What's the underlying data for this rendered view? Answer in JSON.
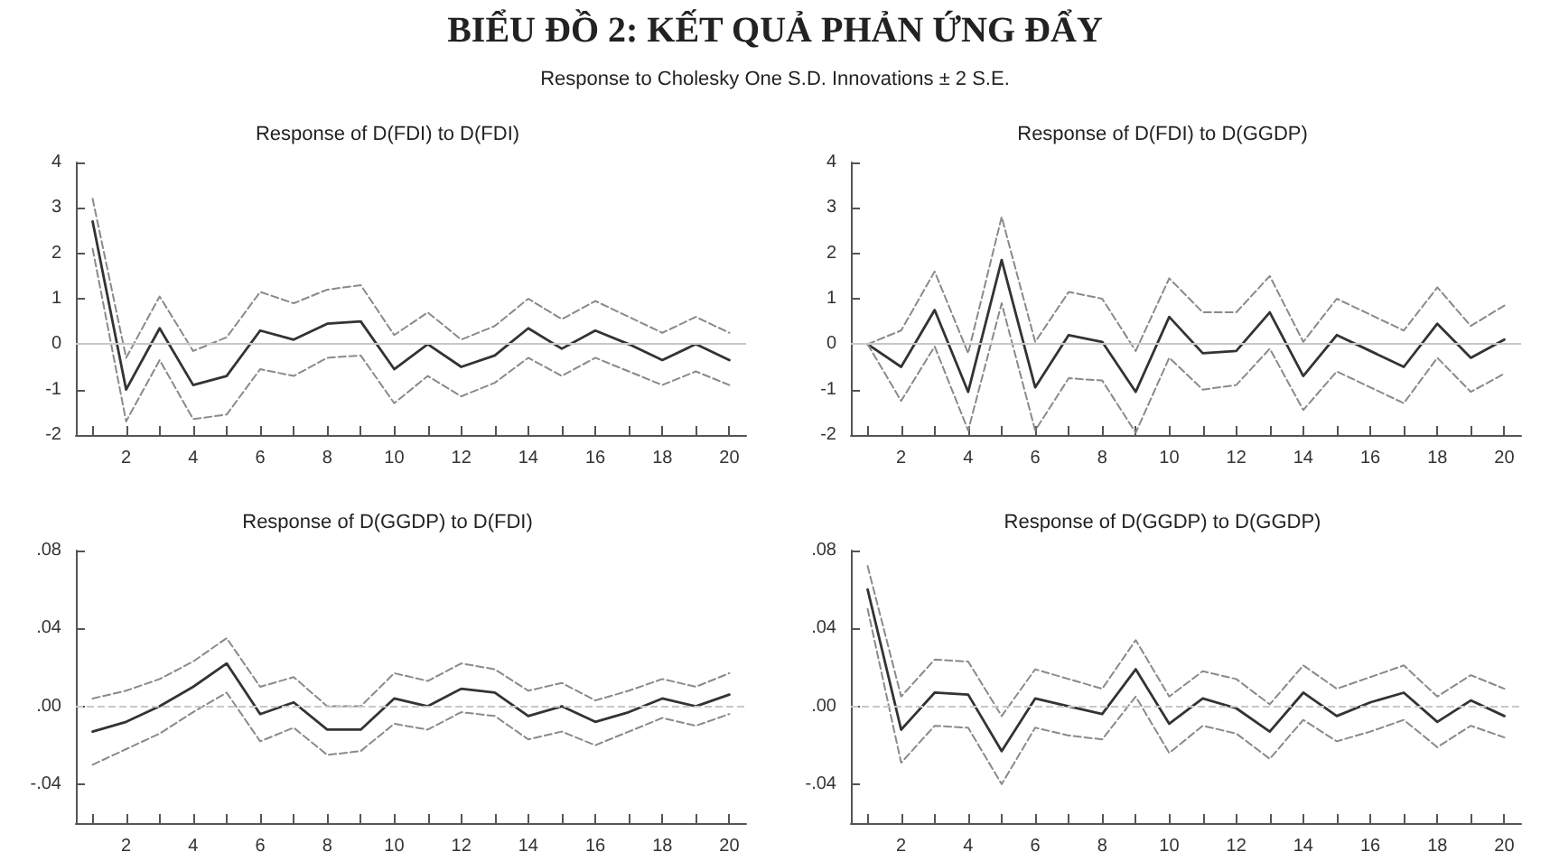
{
  "chart_data": [
    {
      "type": "line",
      "title": "Response of D(FDI) to D(FDI)",
      "annotations": [
        "BIỂU ĐỒ 2: KẾT QUẢ PHẢN ỨNG ĐẨY",
        "Response to Cholesky One S.D. Innovations ± 2 S.E."
      ],
      "x": [
        1,
        2,
        3,
        4,
        5,
        6,
        7,
        8,
        9,
        10,
        11,
        12,
        13,
        14,
        15,
        16,
        17,
        18,
        19,
        20
      ],
      "xlim": [
        0.5,
        20.5
      ],
      "xticks": [
        {
          "value": 1,
          "label": null
        },
        2,
        {
          "value": 3,
          "label": null
        },
        4,
        {
          "value": 5,
          "label": null
        },
        6,
        {
          "value": 7,
          "label": null
        },
        8,
        {
          "value": 9,
          "label": null
        },
        10,
        {
          "value": 11,
          "label": null
        },
        12,
        {
          "value": 13,
          "label": null
        },
        14,
        {
          "value": 15,
          "label": null
        },
        16,
        {
          "value": 17,
          "label": null
        },
        18,
        {
          "value": 19,
          "label": null
        },
        20
      ],
      "ylim": [
        -2,
        4
      ],
      "yticks": [
        -2,
        -1,
        0,
        1,
        2,
        3,
        4
      ],
      "grid": false,
      "marker": "none",
      "ref_lines": [
        {
          "axis": "y",
          "value": 0,
          "color": "#c8c8c8"
        }
      ],
      "series": [
        {
          "color": "#333333",
          "line_style": "solid",
          "values": [
            2.7,
            -1.0,
            0.35,
            -0.9,
            -0.7,
            0.3,
            0.1,
            0.45,
            0.5,
            -0.55,
            0.0,
            -0.5,
            -0.25,
            0.35,
            -0.1,
            0.3,
            0.0,
            -0.35,
            0.0,
            -0.35
          ]
        },
        {
          "color": "#8a8a8a",
          "line_style": "dashed",
          "values": [
            3.2,
            -0.3,
            1.05,
            -0.15,
            0.15,
            1.15,
            0.9,
            1.2,
            1.3,
            0.2,
            0.7,
            0.1,
            0.4,
            1.0,
            0.55,
            0.95,
            0.6,
            0.25,
            0.6,
            0.25
          ]
        },
        {
          "color": "#8a8a8a",
          "line_style": "dashed",
          "values": [
            2.1,
            -1.7,
            -0.35,
            -1.65,
            -1.55,
            -0.55,
            -0.7,
            -0.3,
            -0.25,
            -1.3,
            -0.7,
            -1.15,
            -0.85,
            -0.3,
            -0.7,
            -0.3,
            -0.6,
            -0.9,
            -0.6,
            -0.9
          ]
        }
      ]
    },
    {
      "type": "line",
      "title": "Response of D(FDI) to D(GGDP)",
      "x": [
        1,
        2,
        3,
        4,
        5,
        6,
        7,
        8,
        9,
        10,
        11,
        12,
        13,
        14,
        15,
        16,
        17,
        18,
        19,
        20
      ],
      "xlim": [
        0.5,
        20.5
      ],
      "xticks": [
        {
          "value": 1,
          "label": null
        },
        2,
        {
          "value": 3,
          "label": null
        },
        4,
        {
          "value": 5,
          "label": null
        },
        6,
        {
          "value": 7,
          "label": null
        },
        8,
        {
          "value": 9,
          "label": null
        },
        10,
        {
          "value": 11,
          "label": null
        },
        12,
        {
          "value": 13,
          "label": null
        },
        14,
        {
          "value": 15,
          "label": null
        },
        16,
        {
          "value": 17,
          "label": null
        },
        18,
        {
          "value": 19,
          "label": null
        },
        20
      ],
      "ylim": [
        -2,
        4
      ],
      "yticks": [
        -2,
        -1,
        0,
        1,
        2,
        3,
        4
      ],
      "grid": false,
      "marker": "none",
      "ref_lines": [
        {
          "axis": "y",
          "value": 0,
          "color": "#c8c8c8"
        }
      ],
      "series": [
        {
          "color": "#333333",
          "line_style": "solid",
          "values": [
            0,
            -0.5,
            0.75,
            -1.05,
            1.85,
            -0.95,
            0.2,
            0.05,
            -1.05,
            0.6,
            -0.2,
            -0.15,
            0.7,
            -0.7,
            0.2,
            -0.15,
            -0.5,
            0.45,
            -0.3,
            0.1
          ]
        },
        {
          "color": "#8a8a8a",
          "line_style": "dashed",
          "values": [
            0,
            0.3,
            1.6,
            -0.2,
            2.8,
            0.05,
            1.15,
            1.0,
            -0.15,
            1.45,
            0.7,
            0.7,
            1.5,
            0.05,
            1.0,
            0.65,
            0.3,
            1.25,
            0.4,
            0.85
          ]
        },
        {
          "color": "#8a8a8a",
          "line_style": "dashed",
          "values": [
            0,
            -1.25,
            -0.05,
            -1.9,
            0.9,
            -1.9,
            -0.75,
            -0.8,
            -1.95,
            -0.3,
            -1.0,
            -0.9,
            -0.1,
            -1.45,
            -0.6,
            -0.95,
            -1.3,
            -0.3,
            -1.05,
            -0.65
          ]
        }
      ]
    },
    {
      "type": "line",
      "title": "Response of D(GGDP) to D(FDI)",
      "x": [
        1,
        2,
        3,
        4,
        5,
        6,
        7,
        8,
        9,
        10,
        11,
        12,
        13,
        14,
        15,
        16,
        17,
        18,
        19,
        20
      ],
      "xlim": [
        0.5,
        20.5
      ],
      "xticks": [
        {
          "value": 1,
          "label": null
        },
        2,
        {
          "value": 3,
          "label": null
        },
        4,
        {
          "value": 5,
          "label": null
        },
        6,
        {
          "value": 7,
          "label": null
        },
        8,
        {
          "value": 9,
          "label": null
        },
        10,
        {
          "value": 11,
          "label": null
        },
        12,
        {
          "value": 13,
          "label": null
        },
        14,
        {
          "value": 15,
          "label": null
        },
        16,
        {
          "value": 17,
          "label": null
        },
        18,
        {
          "value": 19,
          "label": null
        },
        20
      ],
      "ylim": [
        -0.06,
        0.08
      ],
      "yticks": [
        {
          "value": 0.08,
          "label": ".08"
        },
        {
          "value": 0.04,
          "label": ".04"
        },
        {
          "value": 0,
          "label": ".00"
        },
        {
          "value": -0.04,
          "label": "-.04"
        }
      ],
      "grid": false,
      "marker": "none",
      "ref_lines": [
        {
          "axis": "y",
          "value": 0,
          "color": "#c8c8c8",
          "line_style": "dashed"
        }
      ],
      "series": [
        {
          "color": "#333333",
          "line_style": "solid",
          "values": [
            -0.013,
            -0.008,
            0.0,
            0.01,
            0.022,
            -0.004,
            0.002,
            -0.012,
            -0.012,
            0.004,
            0.0,
            0.009,
            0.007,
            -0.005,
            0.0,
            -0.008,
            -0.003,
            0.004,
            0.0,
            0.006
          ]
        },
        {
          "color": "#8a8a8a",
          "line_style": "dashed",
          "values": [
            0.004,
            0.008,
            0.014,
            0.023,
            0.035,
            0.01,
            0.015,
            0.0,
            0.0,
            0.017,
            0.013,
            0.022,
            0.019,
            0.008,
            0.012,
            0.003,
            0.008,
            0.014,
            0.01,
            0.017
          ]
        },
        {
          "color": "#8a8a8a",
          "line_style": "dashed",
          "values": [
            -0.03,
            -0.022,
            -0.014,
            -0.003,
            0.007,
            -0.018,
            -0.011,
            -0.025,
            -0.023,
            -0.009,
            -0.012,
            -0.003,
            -0.005,
            -0.017,
            -0.013,
            -0.02,
            -0.013,
            -0.006,
            -0.01,
            -0.004
          ]
        }
      ]
    },
    {
      "type": "line",
      "title": "Response of D(GGDP) to D(GGDP)",
      "x": [
        1,
        2,
        3,
        4,
        5,
        6,
        7,
        8,
        9,
        10,
        11,
        12,
        13,
        14,
        15,
        16,
        17,
        18,
        19,
        20
      ],
      "xlim": [
        0.5,
        20.5
      ],
      "xticks": [
        {
          "value": 1,
          "label": null
        },
        2,
        {
          "value": 3,
          "label": null
        },
        4,
        {
          "value": 5,
          "label": null
        },
        6,
        {
          "value": 7,
          "label": null
        },
        8,
        {
          "value": 9,
          "label": null
        },
        10,
        {
          "value": 11,
          "label": null
        },
        12,
        {
          "value": 13,
          "label": null
        },
        14,
        {
          "value": 15,
          "label": null
        },
        16,
        {
          "value": 17,
          "label": null
        },
        18,
        {
          "value": 19,
          "label": null
        },
        20
      ],
      "ylim": [
        -0.06,
        0.08
      ],
      "yticks": [
        {
          "value": 0.08,
          "label": ".08"
        },
        {
          "value": 0.04,
          "label": ".04"
        },
        {
          "value": 0,
          "label": ".00"
        },
        {
          "value": -0.04,
          "label": "-.04"
        }
      ],
      "grid": false,
      "marker": "none",
      "ref_lines": [
        {
          "axis": "y",
          "value": 0,
          "color": "#c8c8c8",
          "line_style": "dashed"
        }
      ],
      "series": [
        {
          "color": "#333333",
          "line_style": "solid",
          "values": [
            0.06,
            -0.012,
            0.007,
            0.006,
            -0.023,
            0.004,
            0.0,
            -0.004,
            0.019,
            -0.009,
            0.004,
            -0.001,
            -0.013,
            0.007,
            -0.005,
            0.002,
            0.007,
            -0.008,
            0.003,
            -0.005
          ]
        },
        {
          "color": "#8a8a8a",
          "line_style": "dashed",
          "values": [
            0.072,
            0.005,
            0.024,
            0.023,
            -0.005,
            0.019,
            0.014,
            0.009,
            0.034,
            0.005,
            0.018,
            0.014,
            0.001,
            0.021,
            0.009,
            0.015,
            0.021,
            0.005,
            0.016,
            0.009
          ]
        },
        {
          "color": "#8a8a8a",
          "line_style": "dashed",
          "values": [
            0.05,
            -0.029,
            -0.01,
            -0.011,
            -0.04,
            -0.011,
            -0.015,
            -0.017,
            0.005,
            -0.024,
            -0.01,
            -0.014,
            -0.027,
            -0.007,
            -0.018,
            -0.013,
            -0.007,
            -0.021,
            -0.01,
            -0.016
          ]
        }
      ]
    }
  ]
}
